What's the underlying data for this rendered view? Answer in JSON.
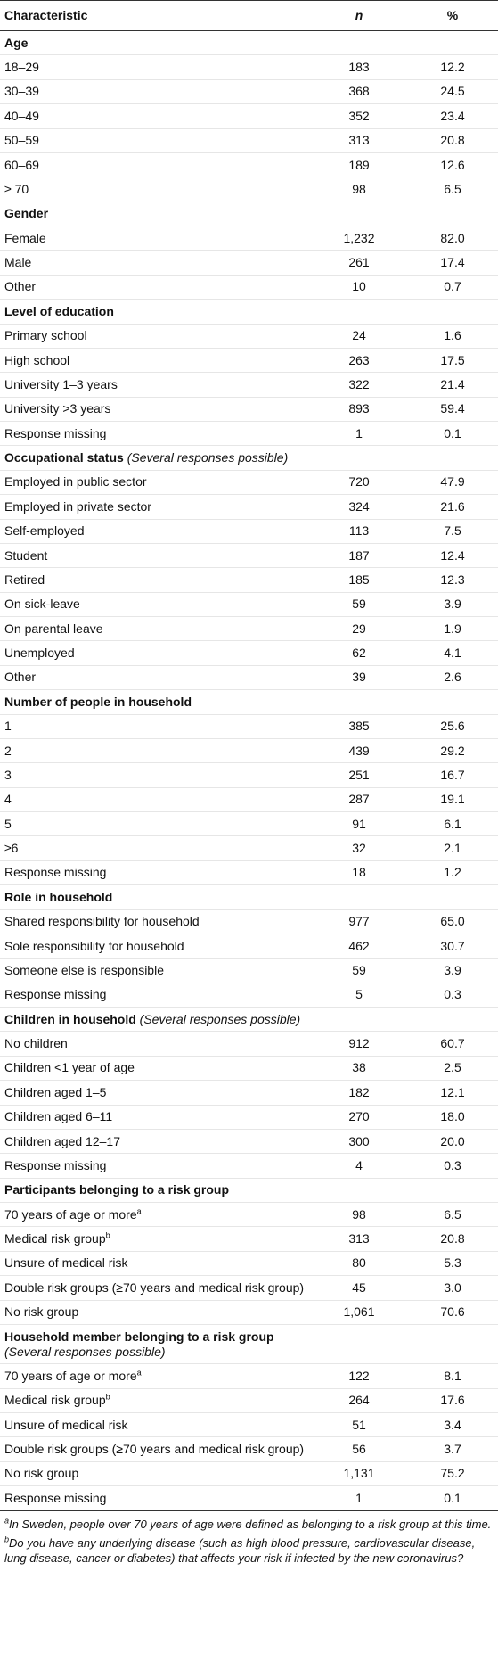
{
  "table": {
    "header": [
      "Characteristic",
      "n",
      "%"
    ],
    "sections": [
      {
        "title": "Age",
        "rows": [
          {
            "label": "18–29",
            "n": "183",
            "pct": "12.2"
          },
          {
            "label": "30–39",
            "n": "368",
            "pct": "24.5"
          },
          {
            "label": "40–49",
            "n": "352",
            "pct": "23.4"
          },
          {
            "label": "50–59",
            "n": "313",
            "pct": "20.8"
          },
          {
            "label": "60–69",
            "n": "189",
            "pct": "12.6"
          },
          {
            "label": "≥ 70",
            "n": "98",
            "pct": "6.5"
          }
        ]
      },
      {
        "title": "Gender",
        "rows": [
          {
            "label": "Female",
            "n": "1,232",
            "pct": "82.0"
          },
          {
            "label": "Male",
            "n": "261",
            "pct": "17.4"
          },
          {
            "label": "Other",
            "n": "10",
            "pct": "0.7"
          }
        ]
      },
      {
        "title": "Level of education",
        "rows": [
          {
            "label": "Primary school",
            "n": "24",
            "pct": "1.6"
          },
          {
            "label": "High school",
            "n": "263",
            "pct": "17.5"
          },
          {
            "label": "University 1–3 years",
            "n": "322",
            "pct": "21.4"
          },
          {
            "label": "University >3 years",
            "n": "893",
            "pct": "59.4"
          },
          {
            "label": "Response missing",
            "n": "1",
            "pct": "0.1"
          }
        ]
      },
      {
        "title": "Occupational status",
        "note": "(Several responses possible)",
        "rows": [
          {
            "label": "Employed in public sector",
            "n": "720",
            "pct": "47.9"
          },
          {
            "label": "Employed in private sector",
            "n": "324",
            "pct": "21.6"
          },
          {
            "label": "Self-employed",
            "n": "113",
            "pct": "7.5"
          },
          {
            "label": "Student",
            "n": "187",
            "pct": "12.4"
          },
          {
            "label": "Retired",
            "n": "185",
            "pct": "12.3"
          },
          {
            "label": "On sick-leave",
            "n": "59",
            "pct": "3.9"
          },
          {
            "label": "On parental leave",
            "n": "29",
            "pct": "1.9"
          },
          {
            "label": "Unemployed",
            "n": "62",
            "pct": "4.1"
          },
          {
            "label": "Other",
            "n": "39",
            "pct": "2.6"
          }
        ]
      },
      {
        "title": "Number of people in household",
        "rows": [
          {
            "label": "1",
            "n": "385",
            "pct": "25.6"
          },
          {
            "label": "2",
            "n": "439",
            "pct": "29.2"
          },
          {
            "label": "3",
            "n": "251",
            "pct": "16.7"
          },
          {
            "label": "4",
            "n": "287",
            "pct": "19.1"
          },
          {
            "label": "5",
            "n": "91",
            "pct": "6.1"
          },
          {
            "label": "≥6",
            "n": "32",
            "pct": "2.1"
          },
          {
            "label": "Response missing",
            "n": "18",
            "pct": "1.2"
          }
        ]
      },
      {
        "title": "Role in household",
        "rows": [
          {
            "label": "Shared responsibility for household",
            "n": "977",
            "pct": "65.0"
          },
          {
            "label": "Sole responsibility for household",
            "n": "462",
            "pct": "30.7"
          },
          {
            "label": "Someone else is responsible",
            "n": "59",
            "pct": "3.9"
          },
          {
            "label": "Response missing",
            "n": "5",
            "pct": "0.3"
          }
        ]
      },
      {
        "title": "Children in household",
        "note": "(Several responses possible)",
        "rows": [
          {
            "label": "No children",
            "n": "912",
            "pct": "60.7"
          },
          {
            "label": "Children <1 year of age",
            "n": "38",
            "pct": "2.5"
          },
          {
            "label": "Children aged 1–5",
            "n": "182",
            "pct": "12.1"
          },
          {
            "label": "Children aged 6–11",
            "n": "270",
            "pct": "18.0"
          },
          {
            "label": "Children aged 12–17",
            "n": "300",
            "pct": "20.0"
          },
          {
            "label": "Response missing",
            "n": "4",
            "pct": "0.3"
          }
        ]
      },
      {
        "title": "Participants belonging to a risk group",
        "rows": [
          {
            "label": "70 years of age or more",
            "sup": "a",
            "n": "98",
            "pct": "6.5"
          },
          {
            "label": "Medical risk group",
            "sup": "b",
            "n": "313",
            "pct": "20.8"
          },
          {
            "label": "Unsure of medical risk",
            "n": "80",
            "pct": "5.3"
          },
          {
            "label": "Double risk groups (≥70 years and medical risk group)",
            "n": "45",
            "pct": "3.0"
          },
          {
            "label": "No risk group",
            "n": "1,061",
            "pct": "70.6"
          }
        ]
      },
      {
        "title": "Household member belonging to a risk group",
        "note": "(Several responses possible)",
        "rows": [
          {
            "label": "70 years of age or more",
            "sup": "a",
            "n": "122",
            "pct": "8.1"
          },
          {
            "label": "Medical risk group",
            "sup": "b",
            "n": "264",
            "pct": "17.6"
          },
          {
            "label": "Unsure of medical risk",
            "n": "51",
            "pct": "3.4"
          },
          {
            "label": "Double risk groups (≥70 years and medical risk group)",
            "n": "56",
            "pct": "3.7"
          },
          {
            "label": "No risk group",
            "n": "1,131",
            "pct": "75.2"
          },
          {
            "label": "Response missing",
            "n": "1",
            "pct": "0.1"
          }
        ]
      }
    ]
  },
  "footnotes": [
    {
      "mark": "a",
      "text": "In Sweden, people over 70 years of age were defined as belonging to a risk group at this time."
    },
    {
      "mark": "b",
      "text": "Do you have any underlying disease (such as high blood pressure, cardiovascular disease, lung disease, cancer or diabetes) that affects your risk if infected by the new coronavirus?"
    }
  ]
}
